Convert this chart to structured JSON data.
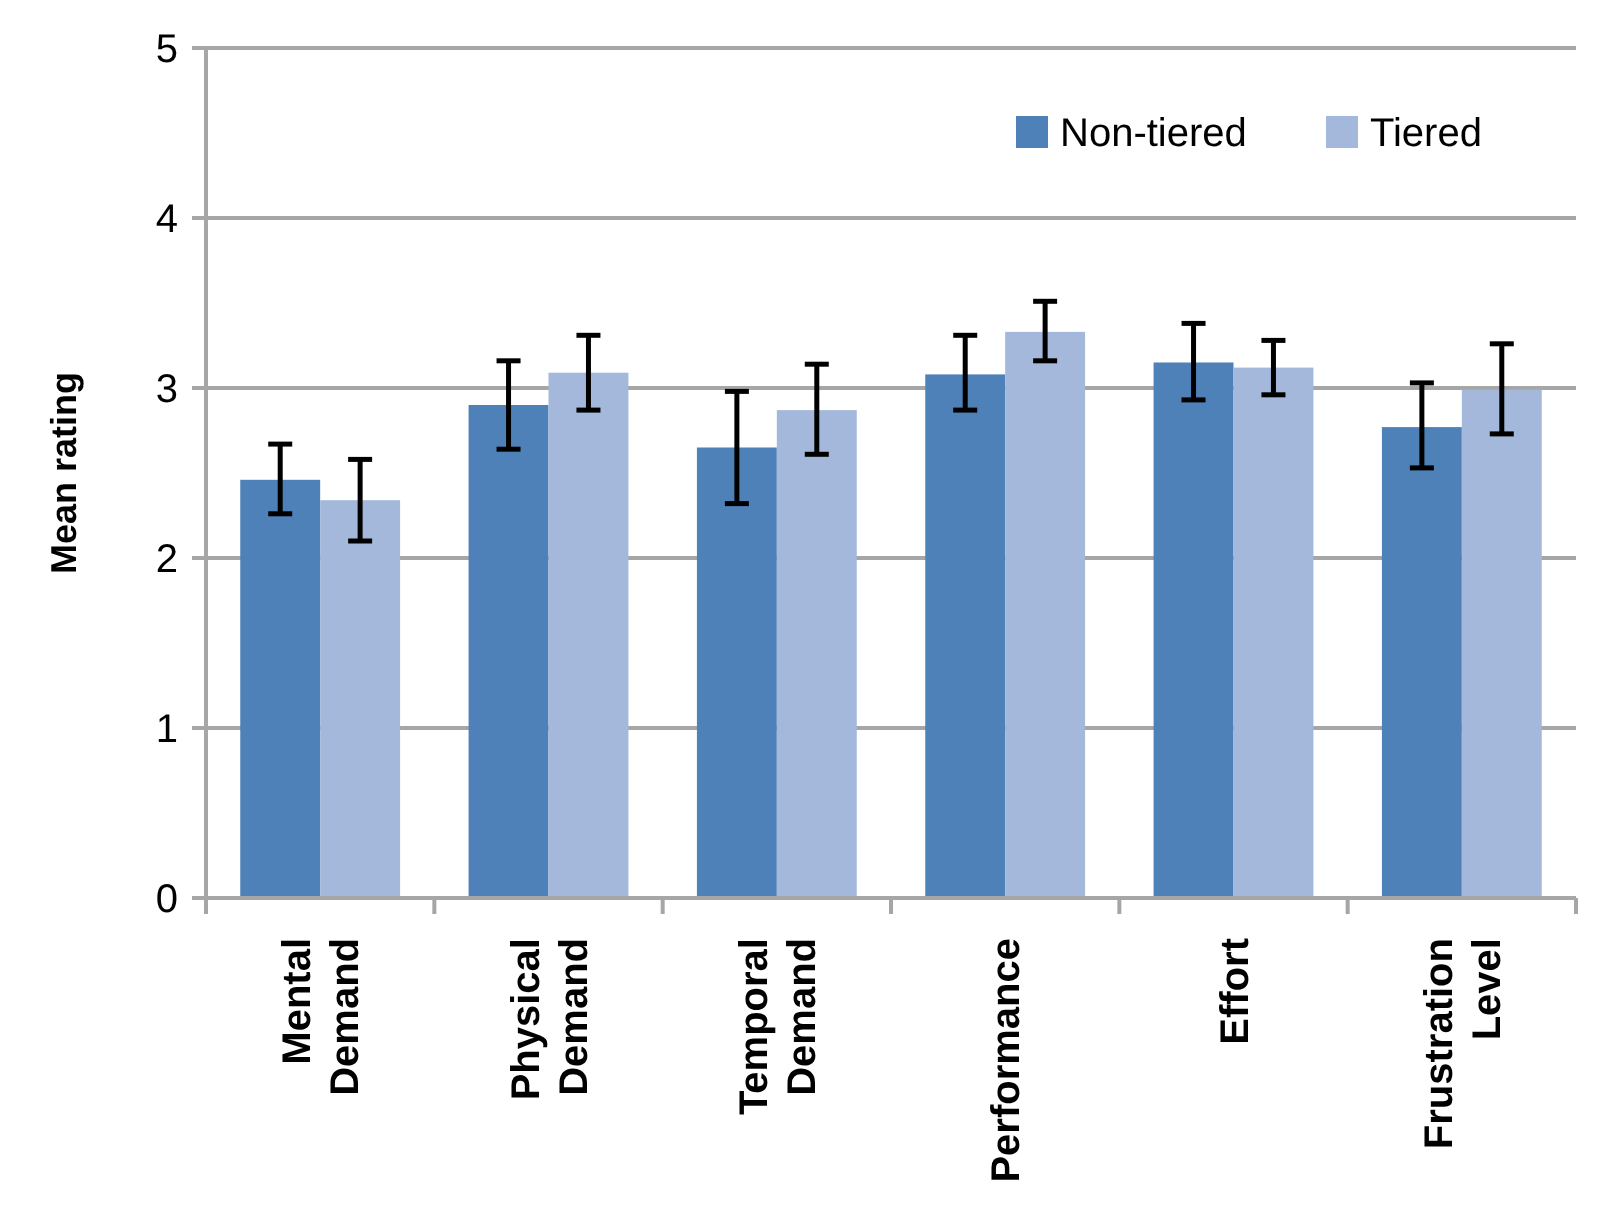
{
  "chart_data": {
    "type": "bar",
    "ylabel": "Mean rating",
    "categories": [
      "Mental Demand",
      "Physical Demand",
      "Temporal Demand",
      "Performance",
      "Effort",
      "Frustration Level"
    ],
    "series": [
      {
        "name": "Non-tiered",
        "color": "#4f81b9",
        "values": [
          2.46,
          2.9,
          2.65,
          3.08,
          3.15,
          2.77
        ],
        "errors": [
          [
            2.26,
            2.67
          ],
          [
            2.64,
            3.16
          ],
          [
            2.32,
            2.98
          ],
          [
            2.87,
            3.31
          ],
          [
            2.93,
            3.38
          ],
          [
            2.53,
            3.03
          ]
        ]
      },
      {
        "name": "Tiered",
        "color": "#a3b8da",
        "values": [
          2.34,
          3.09,
          2.87,
          3.33,
          3.12,
          2.99
        ],
        "errors": [
          [
            2.1,
            2.58
          ],
          [
            2.87,
            3.31
          ],
          [
            2.61,
            3.14
          ],
          [
            3.16,
            3.51
          ],
          [
            2.96,
            3.28
          ],
          [
            2.73,
            3.26
          ]
        ]
      }
    ],
    "ylim": [
      0,
      5
    ],
    "yticks": [
      0,
      1,
      2,
      3,
      4,
      5
    ],
    "grid": "y",
    "legend": "top right"
  }
}
